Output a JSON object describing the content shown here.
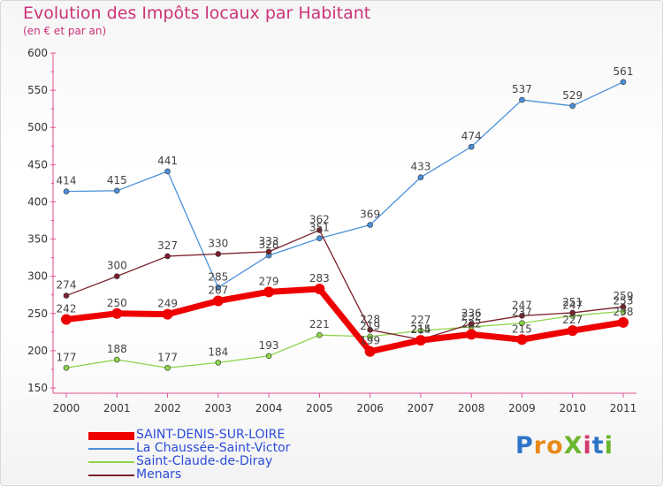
{
  "title": "Evolution des Impôts locaux par Habitant",
  "subtitle": "(en € et par an)",
  "logo": "ProXiti",
  "chart_data": {
    "type": "line",
    "x": [
      2000,
      2001,
      2002,
      2003,
      2004,
      2005,
      2006,
      2007,
      2008,
      2009,
      2010,
      2011
    ],
    "ylim": [
      150,
      600
    ],
    "yticks": [
      150,
      200,
      250,
      300,
      350,
      400,
      450,
      500,
      550,
      600
    ],
    "grid": false,
    "legend_position": "bottom-left",
    "series": [
      {
        "name": "SAINT-DENIS-SUR-LOIRE",
        "color": "#ee0000",
        "values": [
          242,
          250,
          249,
          267,
          279,
          283,
          199,
          214,
          222,
          215,
          227,
          238
        ]
      },
      {
        "name": "La Chaussée-Saint-Victor",
        "color": "#4a90d9",
        "values": [
          414,
          415,
          441,
          285,
          328,
          351,
          369,
          433,
          474,
          537,
          529,
          561
        ]
      },
      {
        "name": "Saint-Claude-de-Diray",
        "color": "#8ed44c",
        "values": [
          177,
          188,
          177,
          184,
          193,
          221,
          219,
          227,
          232,
          237,
          247,
          253
        ]
      },
      {
        "name": "Menars",
        "color": "#7a1f2b",
        "values": [
          274,
          300,
          327,
          330,
          333,
          362,
          228,
          215,
          236,
          247,
          251,
          259
        ]
      }
    ]
  }
}
